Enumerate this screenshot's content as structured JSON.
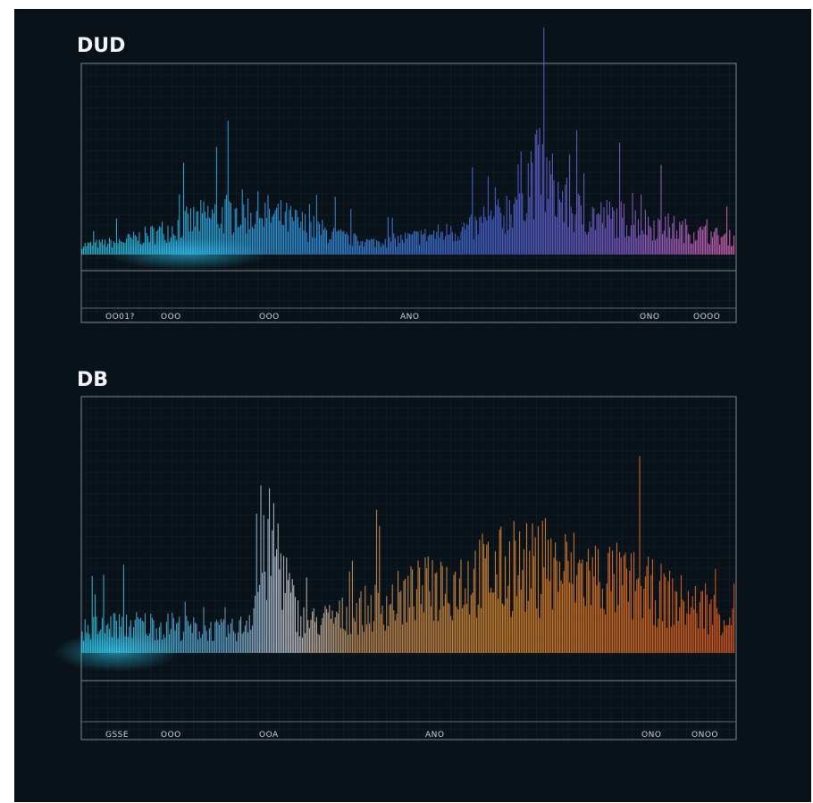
{
  "panels": [
    {
      "title": "DUD",
      "tick_labels": [
        "OO01?",
        "OOO",
        "OOO",
        "ANO",
        "ONO",
        "OOOO"
      ]
    },
    {
      "title": "DB",
      "tick_labels": [
        "GSSE",
        "OOO",
        "OOA",
        "ANO",
        "ONO",
        "ONOO"
      ]
    }
  ]
}
